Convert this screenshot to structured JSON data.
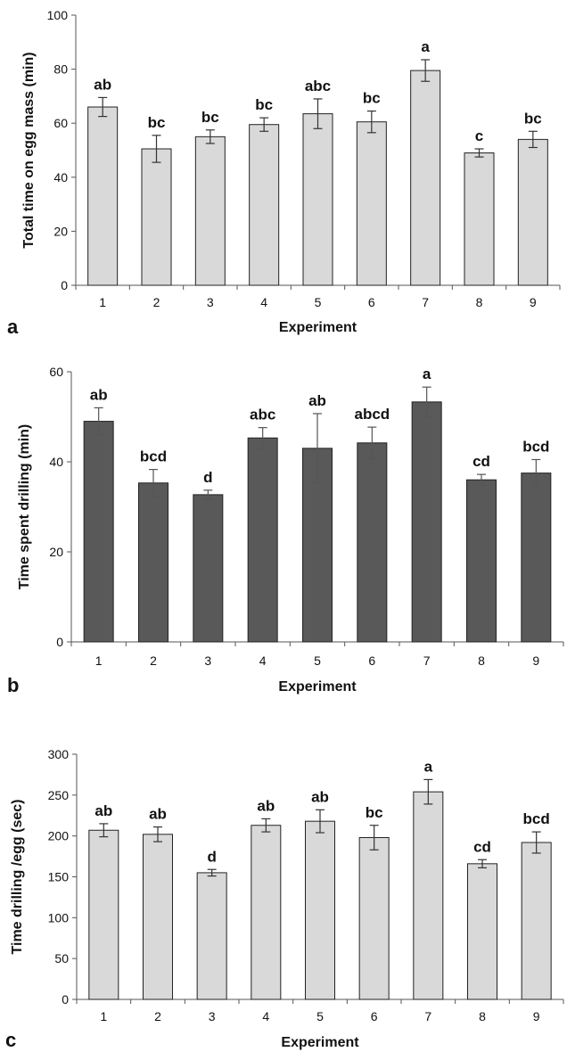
{
  "chart_data": [
    {
      "type": "bar",
      "panel_label": "a",
      "categories": [
        "1",
        "2",
        "3",
        "4",
        "5",
        "6",
        "7",
        "8",
        "9"
      ],
      "values": [
        66,
        50.5,
        55,
        59.5,
        63.5,
        60.5,
        79.5,
        49,
        54
      ],
      "errors": [
        3.5,
        5,
        2.5,
        2.5,
        5.5,
        4,
        4,
        1.5,
        3
      ],
      "significance_letters": [
        "ab",
        "bc",
        "bc",
        "bc",
        "abc",
        "bc",
        "a",
        "c",
        "bc"
      ],
      "xlabel": "Experiment",
      "ylabel": "Total time on egg mass (min)",
      "ylim": [
        0,
        100
      ],
      "yticks": [
        0,
        20,
        40,
        60,
        80,
        100
      ],
      "bar_color": "#d9d9d9",
      "error_bar_color": "#333333"
    },
    {
      "type": "bar",
      "panel_label": "b",
      "categories": [
        "1",
        "2",
        "3",
        "4",
        "5",
        "6",
        "7",
        "8",
        "9"
      ],
      "values": [
        49,
        35.3,
        32.7,
        45.3,
        43,
        44.2,
        53.3,
        36,
        37.5
      ],
      "errors": [
        3,
        3,
        1,
        2.3,
        7.7,
        3.5,
        3.3,
        1.2,
        3
      ],
      "significance_letters": [
        "ab",
        "bcd",
        "d",
        "abc",
        "ab",
        "abcd",
        "a",
        "cd",
        "bcd"
      ],
      "xlabel": "Experiment",
      "ylabel": "Time spent drilling  (min)",
      "ylim": [
        0,
        60
      ],
      "yticks": [
        0,
        20,
        40,
        60
      ],
      "bar_color": "#595959",
      "error_bar_color": "#555555"
    },
    {
      "type": "bar",
      "panel_label": "c",
      "categories": [
        "1",
        "2",
        "3",
        "4",
        "5",
        "6",
        "7",
        "8",
        "9"
      ],
      "values": [
        207,
        202,
        155,
        213,
        218,
        198,
        254,
        166,
        192
      ],
      "errors": [
        8,
        9,
        4,
        8,
        14,
        15,
        15,
        5,
        13
      ],
      "significance_letters": [
        "ab",
        "ab",
        "d",
        "ab",
        "ab",
        "bc",
        "a",
        "cd",
        "bcd"
      ],
      "xlabel": "Experiment",
      "ylabel": "Time drilling /egg (sec)",
      "ylim": [
        0,
        300
      ],
      "yticks": [
        0,
        50,
        100,
        150,
        200,
        250,
        300
      ],
      "bar_color": "#d9d9d9",
      "error_bar_color": "#333333"
    }
  ]
}
